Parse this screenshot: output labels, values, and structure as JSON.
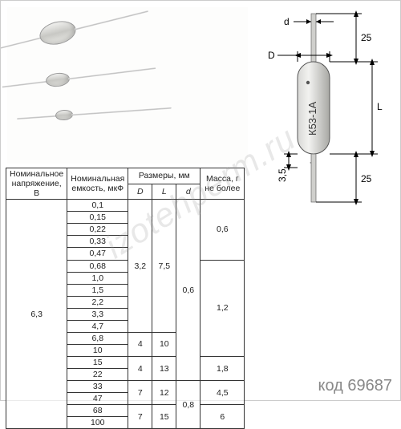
{
  "watermark": "izotehperm.ru",
  "code": "код 69687",
  "diagram": {
    "part_label": "К53-1А",
    "dims": {
      "d": "d",
      "D": "D",
      "L": "L",
      "lead_len": "25",
      "tail": "3,5"
    },
    "body_color_light": "#e8e8e6",
    "body_color_dark": "#b8b8b4",
    "lead_color": "#c9c9c7"
  },
  "table": {
    "headers": {
      "voltage": "Номинальное\nнапряжение, В",
      "capacitance": "Номинальная\nемкость, мкФ",
      "dims": "Размеры, мм",
      "D": "D",
      "L": "L",
      "d": "d",
      "mass": "Масса, г\nне более"
    },
    "voltage": "6,3",
    "caps": [
      "0,1",
      "0,15",
      "0,22",
      "0,33",
      "0,47",
      "0,68",
      "1,0",
      "1,5",
      "2,2",
      "3,3",
      "4,7",
      "6,8",
      "10",
      "15",
      "22",
      "33",
      "47",
      "68",
      "100"
    ],
    "groups": [
      {
        "rows": 11,
        "D": "3,2",
        "L": "7,5"
      },
      {
        "rows": 2,
        "D": "4",
        "L": "10"
      },
      {
        "rows": 2,
        "D": "4",
        "L": "13"
      },
      {
        "rows": 2,
        "D": "7",
        "L": "12"
      },
      {
        "rows": 2,
        "D": "7",
        "L": "15"
      }
    ],
    "d_groups": [
      {
        "rows": 15,
        "d": "0,6"
      },
      {
        "rows": 4,
        "d": "0,8"
      }
    ],
    "mass_groups": [
      {
        "rows": 5,
        "m": "0,6"
      },
      {
        "rows": 8,
        "m": "1,2"
      },
      {
        "rows": 2,
        "m": "1,8"
      },
      {
        "rows": 2,
        "m": "4,5"
      },
      {
        "rows": 2,
        "m": "6"
      }
    ]
  }
}
